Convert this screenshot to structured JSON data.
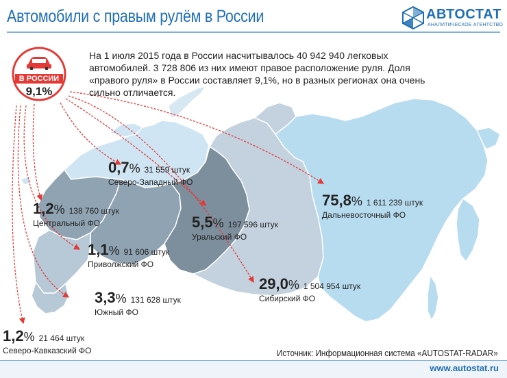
{
  "title": "Автомобили с правым рулём в России",
  "logo": {
    "name": "АВТОСТАТ",
    "subtitle": "АНАЛИТИЧЕСКОЕ АГЕНТСТВО"
  },
  "badge": {
    "label": "В РОССИИ",
    "value": "9,1%",
    "icon": "car-icon"
  },
  "intro": "На 1 июля 2015 года в России насчитывалось 40 942 940 легковых автомобилей. 3 728 806 из них имеют правое расположение руля. Доля «правого руля» в России составляет 9,1%, но в разных регионах она очень сильно отличается.",
  "regions": [
    {
      "id": "nw",
      "pct": "0,7",
      "count": "31 559 штук",
      "name": "Северо-Западный ФО",
      "color": "#cfe5f3"
    },
    {
      "id": "c",
      "pct": "1,2",
      "count": "138 760 штук",
      "name": "Центральный ФО",
      "color": "#8fa3b2"
    },
    {
      "id": "v",
      "pct": "1,1",
      "count": "91 606 штук",
      "name": "Приволжский ФО",
      "color": "#8fa3b2"
    },
    {
      "id": "s",
      "pct": "3,3",
      "count": "131 628 штук",
      "name": "Южный ФО",
      "color": "#b7c8d6"
    },
    {
      "id": "nc",
      "pct": "1,2",
      "count": "21 464 штук",
      "name": "Северо-Кавказский ФО",
      "color": "#b7c8d6"
    },
    {
      "id": "u",
      "pct": "5,5",
      "count": "197 596 штук",
      "name": "Уральский ФО",
      "color": "#7d8f9d"
    },
    {
      "id": "sib",
      "pct": "29,0",
      "count": "1 504 954 штук",
      "name": "Сибирский ФО",
      "color": "#c3d2de"
    },
    {
      "id": "fe",
      "pct": "75,8",
      "count": "1 611 239 штук",
      "name": "Дальневосточный ФО",
      "color": "#b8dcef"
    }
  ],
  "percent_sign": "%",
  "arrow_color": "#e53935",
  "source": "Источник: Информационная система «AUTOSTAT-RADAR»",
  "footer_url": "www.autostat.ru",
  "brand_color": "#1f6fb6"
}
